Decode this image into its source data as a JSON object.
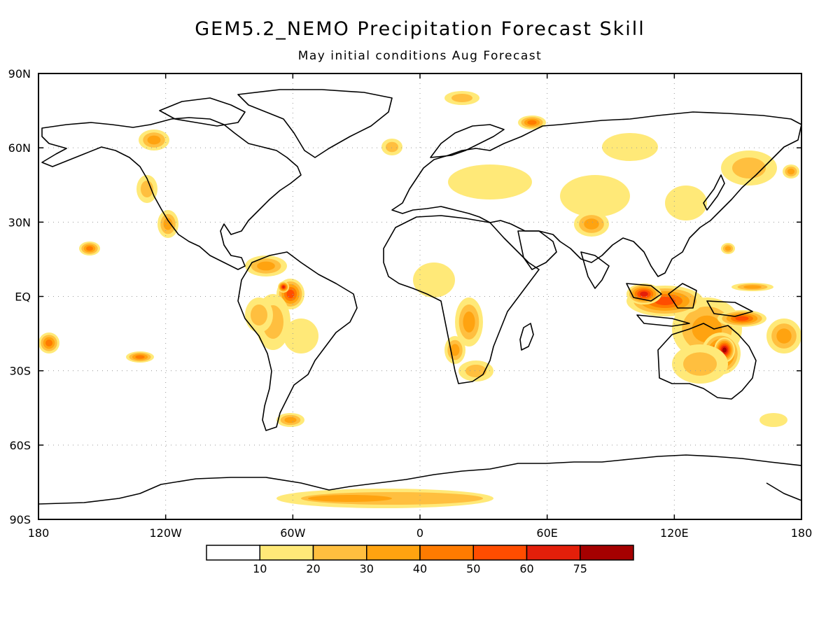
{
  "title": "GEM5.2_NEMO Precipitation Forecast Skill",
  "subtitle": "May initial conditions   Aug Forecast",
  "axes": {
    "lat_labels": [
      "90N",
      "60N",
      "30N",
      "EQ",
      "30S",
      "60S",
      "90S"
    ],
    "lat_values": [
      90,
      60,
      30,
      0,
      -30,
      -60,
      -90
    ],
    "lon_labels": [
      "180",
      "120W",
      "60W",
      "0",
      "60E",
      "120E",
      "180"
    ],
    "lon_values": [
      -180,
      -120,
      -60,
      0,
      60,
      120,
      180
    ],
    "lon_range": [
      -180,
      180
    ],
    "lat_range": [
      -90,
      90
    ],
    "grid": "dotted"
  },
  "colorbar": {
    "labels": [
      "10",
      "20",
      "30",
      "40",
      "50",
      "60",
      "75"
    ],
    "colors": [
      "#ffffff",
      "#ffe978",
      "#ffbf3f",
      "#ffa310",
      "#ff7b00",
      "#ff4d00",
      "#e31f0a",
      "#a50000"
    ]
  }
}
